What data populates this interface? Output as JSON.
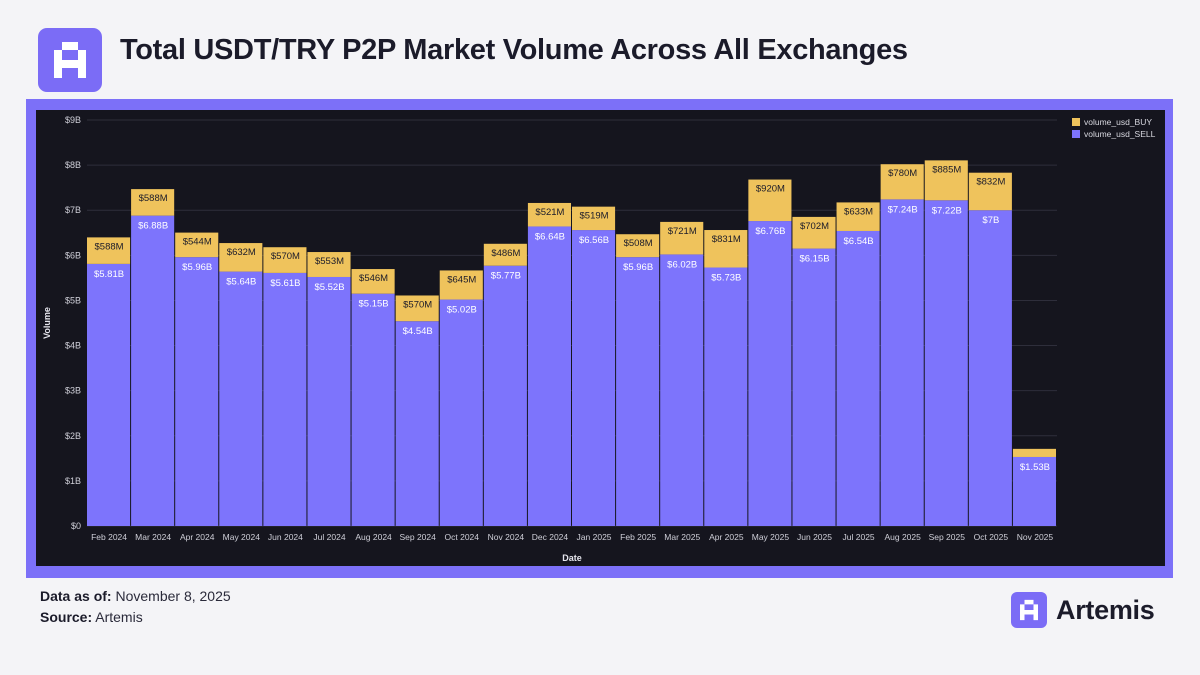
{
  "header": {
    "title": "Total USDT/TRY P2P Market Volume Across All Exchanges"
  },
  "footer": {
    "data_as_of_label": "Data as of:",
    "data_as_of_value": "November 8, 2025",
    "source_label": "Source:",
    "source_value": "Artemis"
  },
  "brand": {
    "name": "Artemis"
  },
  "colors": {
    "buy": "#efc35c",
    "sell": "#7d74fc",
    "panel": "#15151e",
    "frame": "#7c70f8",
    "accent": "#7b6cf6"
  },
  "chart_data": {
    "type": "bar",
    "stacked": true,
    "title": "Total USDT/TRY P2P Market Volume Across All Exchanges",
    "xlabel": "Date",
    "ylabel": "Volume",
    "ylim": [
      0,
      9000000000
    ],
    "yticks": [
      "$0",
      "$1B",
      "$2B",
      "$3B",
      "$4B",
      "$5B",
      "$6B",
      "$7B",
      "$8B",
      "$9B"
    ],
    "legend_position": "top-right",
    "categories": [
      "Feb 2024",
      "Mar 2024",
      "Apr 2024",
      "May 2024",
      "Jun 2024",
      "Jul 2024",
      "Aug 2024",
      "Sep 2024",
      "Oct 2024",
      "Nov 2024",
      "Dec 2024",
      "Jan 2025",
      "Feb 2025",
      "Mar 2025",
      "Apr 2025",
      "May 2025",
      "Jun 2025",
      "Jul 2025",
      "Aug 2025",
      "Sep 2025",
      "Oct 2025",
      "Nov 2025"
    ],
    "series": [
      {
        "name": "volume_usd_SELL",
        "values": [
          5.81,
          6.88,
          5.96,
          5.64,
          5.61,
          5.52,
          5.15,
          4.54,
          5.02,
          5.77,
          6.64,
          6.56,
          5.96,
          6.02,
          5.73,
          6.76,
          6.15,
          6.54,
          7.24,
          7.22,
          7.0,
          1.53
        ],
        "labels": [
          "$5.81B",
          "$6.88B",
          "$5.96B",
          "$5.64B",
          "$5.61B",
          "$5.52B",
          "$5.15B",
          "$4.54B",
          "$5.02B",
          "$5.77B",
          "$6.64B",
          "$6.56B",
          "$5.96B",
          "$6.02B",
          "$5.73B",
          "$6.76B",
          "$6.15B",
          "$6.54B",
          "$7.24B",
          "$7.22B",
          "$7B",
          "$1.53B"
        ]
      },
      {
        "name": "volume_usd_BUY",
        "values": [
          0.588,
          0.588,
          0.544,
          0.632,
          0.57,
          0.553,
          0.546,
          0.57,
          0.645,
          0.486,
          0.521,
          0.519,
          0.508,
          0.721,
          0.831,
          0.92,
          0.702,
          0.633,
          0.78,
          0.885,
          0.832,
          0.18
        ],
        "labels": [
          "$588M",
          "$588M",
          "$544M",
          "$632M",
          "$570M",
          "$553M",
          "$546M",
          "$570M",
          "$645M",
          "$486M",
          "$521M",
          "$519M",
          "$508M",
          "$721M",
          "$831M",
          "$920M",
          "$702M",
          "$633M",
          "$780M",
          "$885M",
          "$832M",
          ""
        ]
      }
    ],
    "unit": "billions USD"
  }
}
